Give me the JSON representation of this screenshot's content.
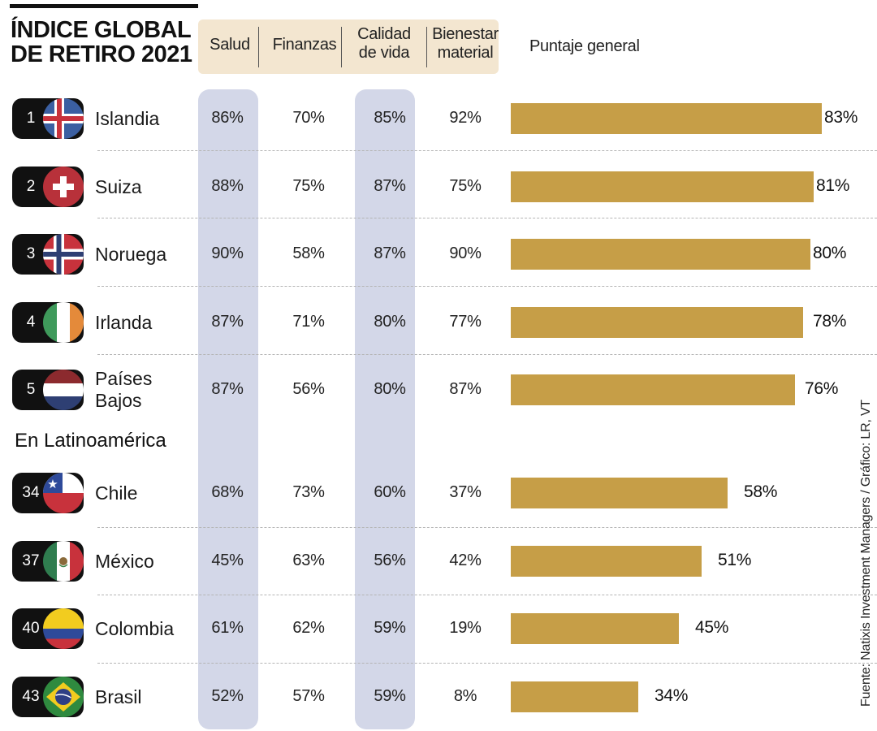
{
  "title": [
    "ÍNDICE GLOBAL",
    "DE RETIRO 2021"
  ],
  "headers": {
    "salud": "Salud",
    "finanzas": "Finanzas",
    "calidad": [
      "Calidad",
      "de vida"
    ],
    "bienestar": [
      "Bienestar",
      "material"
    ],
    "puntaje": "Puntaje general"
  },
  "latam_label": "En Latinoamérica",
  "source": "Fuente: Natixis Investment Managers / Gráfico: LR, VT",
  "colors": {
    "bar": "#c69e47",
    "band": "#d3d7e8",
    "header_bg": "#f3e6d0"
  },
  "chart_data": {
    "type": "bar",
    "title": "ÍNDICE GLOBAL DE RETIRO 2021",
    "xlabel": "",
    "ylabel": "Puntaje general",
    "categories": [
      "Islandia",
      "Suiza",
      "Noruega",
      "Irlanda",
      "Países Bajos",
      "Chile",
      "México",
      "Colombia",
      "Brasil"
    ],
    "ylim": [
      0,
      100
    ],
    "rows": [
      {
        "rank": "1",
        "country": [
          "Islandia"
        ],
        "flag": "iceland",
        "salud": "86%",
        "finanzas": "70%",
        "calidad": "85%",
        "bienestar": "92%",
        "score": 83,
        "score_label": "83%"
      },
      {
        "rank": "2",
        "country": [
          "Suiza"
        ],
        "flag": "switzerland",
        "salud": "88%",
        "finanzas": "75%",
        "calidad": "87%",
        "bienestar": "75%",
        "score": 81,
        "score_label": "81%"
      },
      {
        "rank": "3",
        "country": [
          "Noruega"
        ],
        "flag": "norway",
        "salud": "90%",
        "finanzas": "58%",
        "calidad": "87%",
        "bienestar": "90%",
        "score": 80,
        "score_label": "80%"
      },
      {
        "rank": "4",
        "country": [
          "Irlanda"
        ],
        "flag": "ireland",
        "salud": "87%",
        "finanzas": "71%",
        "calidad": "80%",
        "bienestar": "77%",
        "score": 78,
        "score_label": "78%"
      },
      {
        "rank": "5",
        "country": [
          "Países",
          "Bajos"
        ],
        "flag": "netherlands",
        "salud": "87%",
        "finanzas": "56%",
        "calidad": "80%",
        "bienestar": "87%",
        "score": 76,
        "score_label": "76%"
      },
      {
        "rank": "34",
        "country": [
          "Chile"
        ],
        "flag": "chile",
        "salud": "68%",
        "finanzas": "73%",
        "calidad": "60%",
        "bienestar": "37%",
        "score": 58,
        "score_label": "58%"
      },
      {
        "rank": "37",
        "country": [
          "México"
        ],
        "flag": "mexico",
        "salud": "45%",
        "finanzas": "63%",
        "calidad": "56%",
        "bienestar": "42%",
        "score": 51,
        "score_label": "51%"
      },
      {
        "rank": "40",
        "country": [
          "Colombia"
        ],
        "flag": "colombia",
        "salud": "61%",
        "finanzas": "62%",
        "calidad": "59%",
        "bienestar": "19%",
        "score": 45,
        "score_label": "45%"
      },
      {
        "rank": "43",
        "country": [
          "Brasil"
        ],
        "flag": "brazil",
        "salud": "52%",
        "finanzas": "57%",
        "calidad": "59%",
        "bienestar": "8%",
        "score": 34,
        "score_label": "34%"
      }
    ]
  }
}
